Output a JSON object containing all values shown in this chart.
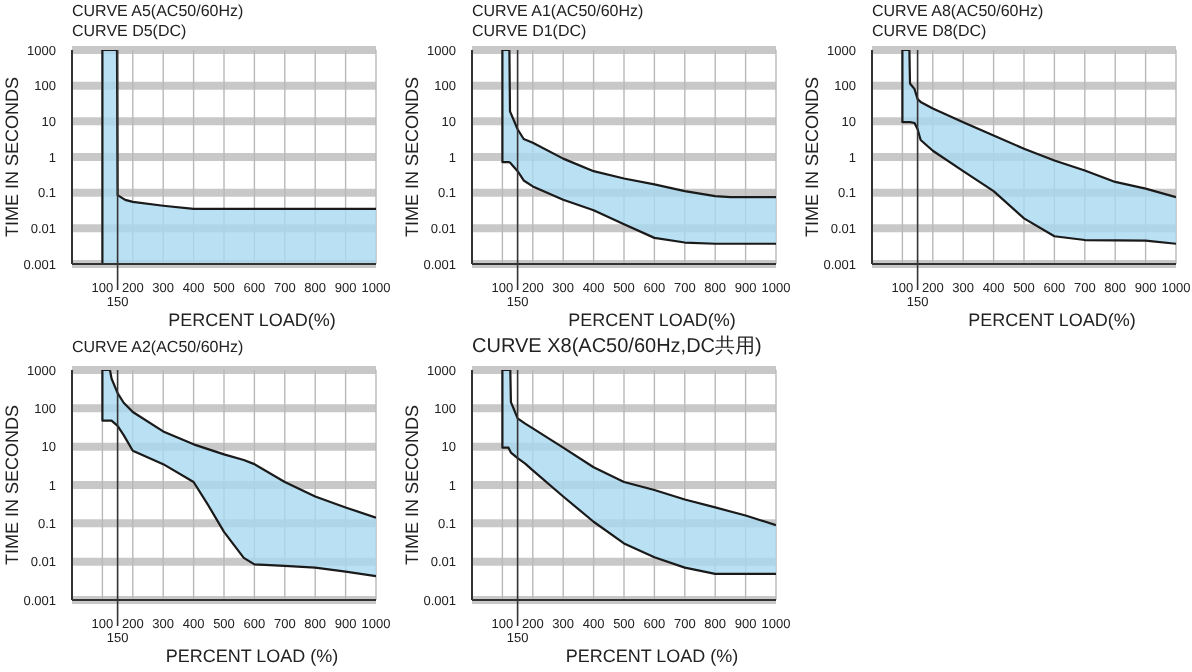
{
  "chart_data": [
    {
      "type": "line",
      "title": "CURVE A5(AC50/60Hz)",
      "subtitle": "CURVE D5(DC)",
      "xlabel": "PERCENT LOAD(%)",
      "ylabel": "TIME IN SECONDS",
      "xlim": [
        0,
        1000
      ],
      "xticks": [
        100,
        200,
        300,
        400,
        500,
        600,
        700,
        800,
        900,
        1000
      ],
      "ylim": [
        0.001,
        1000
      ],
      "yticks": [
        0.001,
        0.01,
        0.1,
        1,
        10,
        100,
        1000
      ],
      "log": true,
      "grid": true,
      "ref_lines": [
        {
          "axis": "x",
          "value": 150,
          "label": "150"
        }
      ],
      "series": [
        {
          "color": "#1a1a1a",
          "x": [
            98,
            100,
            148,
            150,
            175,
            200,
            300,
            400,
            1000
          ],
          "values": [
            1000,
            1000,
            1000,
            0.085,
            0.063,
            0.055,
            0.043,
            0.035,
            0.035
          ],
          "lower": [
            1000,
            0.001,
            0.001,
            0.001,
            0.001,
            0.001,
            0.001,
            0.001,
            0.001
          ],
          "upper": [
            1000,
            1000,
            1000,
            0.085,
            0.063,
            0.055,
            0.043,
            0.035,
            0.035
          ]
        },
        {
          "color": "#1a1a1a",
          "x": [
            100,
            100
          ],
          "values": [
            1000,
            0.001
          ]
        }
      ]
    },
    {
      "type": "line",
      "title": "CURVE A1(AC50/60Hz)",
      "subtitle": "CURVE D1(DC)",
      "xlabel": "PERCENT LOAD(%)",
      "ylabel": "TIME IN SECONDS",
      "xlim": [
        0,
        1000
      ],
      "xticks": [
        100,
        200,
        300,
        400,
        500,
        600,
        700,
        800,
        900,
        1000
      ],
      "ylim": [
        0.001,
        1000
      ],
      "yticks": [
        0.001,
        0.01,
        0.1,
        1,
        10,
        100,
        1000
      ],
      "log": true,
      "grid": true,
      "ref_lines": [
        {
          "axis": "x",
          "value": 150,
          "label": "150"
        }
      ],
      "series": [
        {
          "color": "#1a1a1a",
          "x": [
            98,
            100,
            120,
            123,
            125,
            150,
            170,
            200,
            300,
            400,
            500,
            600,
            700,
            800,
            850,
            1000
          ],
          "values": [
            1000,
            1000,
            1000,
            1000,
            19,
            6,
            3.2,
            2.5,
            0.9,
            0.4,
            0.25,
            0.17,
            0.11,
            0.08,
            0.075,
            0.075
          ],
          "lower": [
            1000,
            0.72,
            0.72,
            0.7,
            0.7,
            0.4,
            0.22,
            0.15,
            0.063,
            0.032,
            0.013,
            0.0054,
            0.004,
            0.0037,
            0.0037,
            0.0037
          ],
          "upper": [
            1000,
            1000,
            1000,
            1000,
            19,
            6,
            3.2,
            2.5,
            0.9,
            0.4,
            0.25,
            0.17,
            0.11,
            0.08,
            0.075,
            0.075
          ]
        },
        {
          "color": "#1a1a1a",
          "x": [
            100,
            100,
            120,
            125,
            150,
            170,
            200,
            300,
            400,
            500,
            600,
            700,
            800,
            850,
            1000
          ],
          "values": [
            1000,
            0.72,
            0.72,
            0.7,
            0.4,
            0.22,
            0.15,
            0.063,
            0.032,
            0.013,
            0.0054,
            0.004,
            0.0037,
            0.0037,
            0.0037
          ]
        }
      ]
    },
    {
      "type": "line",
      "title": "CURVE A8(AC50/60Hz)",
      "subtitle": "CURVE D8(DC)",
      "xlabel": "PERCENT LOAD(%)",
      "ylabel": "TIME IN SECONDS",
      "xlim": [
        0,
        1000
      ],
      "xticks": [
        100,
        200,
        300,
        400,
        500,
        600,
        700,
        800,
        900,
        1000
      ],
      "ylim": [
        0.001,
        1000
      ],
      "yticks": [
        0.001,
        0.01,
        0.1,
        1,
        10,
        100,
        1000
      ],
      "log": true,
      "grid": true,
      "ref_lines": [
        {
          "axis": "x",
          "value": 150,
          "label": "150"
        }
      ],
      "series": [
        {
          "color": "#1a1a1a",
          "x": [
            98,
            100,
            123,
            125,
            140,
            150,
            160,
            200,
            300,
            400,
            500,
            600,
            700,
            800,
            900,
            1000
          ],
          "values": [
            1000,
            1000,
            1000,
            115,
            80,
            42,
            35,
            23,
            9.5,
            4,
            1.7,
            0.8,
            0.42,
            0.2,
            0.13,
            0.075
          ],
          "lower": [
            1000,
            9.5,
            9.5,
            9.5,
            9,
            6,
            3,
            1.5,
            0.4,
            0.11,
            0.019,
            0.006,
            0.0047,
            0.0046,
            0.0045,
            0.0037
          ],
          "upper": [
            1000,
            1000,
            1000,
            115,
            80,
            42,
            35,
            23,
            9.5,
            4,
            1.7,
            0.8,
            0.42,
            0.2,
            0.13,
            0.075
          ]
        },
        {
          "color": "#1a1a1a",
          "x": [
            100,
            100,
            125,
            140,
            150,
            160,
            200,
            300,
            400,
            500,
            600,
            700,
            800,
            900,
            1000
          ],
          "values": [
            1000,
            9.5,
            9.5,
            9,
            6,
            3,
            1.5,
            0.4,
            0.11,
            0.019,
            0.006,
            0.0047,
            0.0046,
            0.0045,
            0.0037
          ]
        }
      ]
    },
    {
      "type": "line",
      "title": "CURVE A2(AC50/60Hz)",
      "xlabel": "PERCENT LOAD (%)",
      "ylabel": "TIME IN SECONDS",
      "xlim": [
        0,
        1000
      ],
      "xticks": [
        100,
        200,
        300,
        400,
        500,
        600,
        700,
        800,
        900,
        1000
      ],
      "ylim": [
        0.001,
        1000
      ],
      "yticks": [
        0.001,
        0.01,
        0.1,
        1,
        10,
        100,
        1000
      ],
      "log": true,
      "grid": true,
      "ref_lines": [
        {
          "axis": "x",
          "value": 150,
          "label": "150"
        }
      ],
      "series": [
        {
          "color": "#1a1a1a",
          "x": [
            98,
            100,
            125,
            130,
            150,
            170,
            200,
            300,
            400,
            450,
            500,
            565,
            600,
            700,
            800,
            900,
            1000
          ],
          "values": [
            1000,
            1000,
            1000,
            600,
            250,
            140,
            80,
            25,
            11.5,
            8.5,
            6.3,
            4.5,
            3.5,
            1.2,
            0.5,
            0.26,
            0.14
          ],
          "lower": [
            1000,
            48,
            48,
            48,
            35,
            20,
            7.8,
            3.5,
            1.2,
            0.28,
            0.06,
            0.0126,
            0.0085,
            0.0078,
            0.007,
            0.0055,
            0.0042
          ],
          "upper": [
            1000,
            1000,
            1000,
            600,
            250,
            140,
            80,
            25,
            11.5,
            8.5,
            6.3,
            4.5,
            3.5,
            1.2,
            0.5,
            0.26,
            0.14
          ]
        },
        {
          "color": "#1a1a1a",
          "x": [
            100,
            100,
            125,
            130,
            150,
            170,
            200,
            300,
            400,
            450,
            500,
            565,
            600,
            700,
            800,
            900,
            1000
          ],
          "values": [
            1000,
            48,
            48,
            48,
            35,
            20,
            7.8,
            3.5,
            1.2,
            0.28,
            0.06,
            0.0126,
            0.0085,
            0.0078,
            0.007,
            0.0055,
            0.0042
          ]
        }
      ]
    },
    {
      "type": "line",
      "title": "CURVE X8(AC50/60Hz,DC共用)",
      "xlabel": "PERCENT LOAD (%)",
      "ylabel": "TIME IN SECONDS",
      "xlim": [
        0,
        1000
      ],
      "xticks": [
        100,
        200,
        300,
        400,
        500,
        600,
        700,
        800,
        900,
        1000
      ],
      "ylim": [
        0.001,
        1000
      ],
      "yticks": [
        0.001,
        0.01,
        0.1,
        1,
        10,
        100,
        1000
      ],
      "log": true,
      "grid": true,
      "ref_lines": [
        {
          "axis": "x",
          "value": 150,
          "label": "150"
        }
      ],
      "series": [
        {
          "color": "#1a1a1a",
          "x": [
            98,
            100,
            120,
            126,
            128,
            150,
            175,
            200,
            300,
            400,
            500,
            600,
            700,
            800,
            900,
            1000
          ],
          "values": [
            1000,
            1000,
            1000,
            1000,
            145,
            55,
            40,
            30,
            9.4,
            2.9,
            1.2,
            0.74,
            0.42,
            0.26,
            0.16,
            0.09
          ],
          "lower": [
            1000,
            9.4,
            9.4,
            7,
            7,
            5,
            3.6,
            2.4,
            0.5,
            0.11,
            0.03,
            0.013,
            0.007,
            0.0048,
            0.0048,
            0.0048
          ],
          "upper": [
            1000,
            1000,
            1000,
            1000,
            145,
            55,
            40,
            30,
            9.4,
            2.9,
            1.2,
            0.74,
            0.42,
            0.26,
            0.16,
            0.09
          ]
        },
        {
          "color": "#1a1a1a",
          "x": [
            100,
            100,
            120,
            128,
            150,
            175,
            200,
            300,
            400,
            500,
            600,
            700,
            800,
            900,
            1000
          ],
          "values": [
            1000,
            9.4,
            9.4,
            7,
            5,
            3.6,
            2.4,
            0.5,
            0.11,
            0.03,
            0.013,
            0.007,
            0.0048,
            0.0048,
            0.0048
          ]
        }
      ]
    }
  ]
}
